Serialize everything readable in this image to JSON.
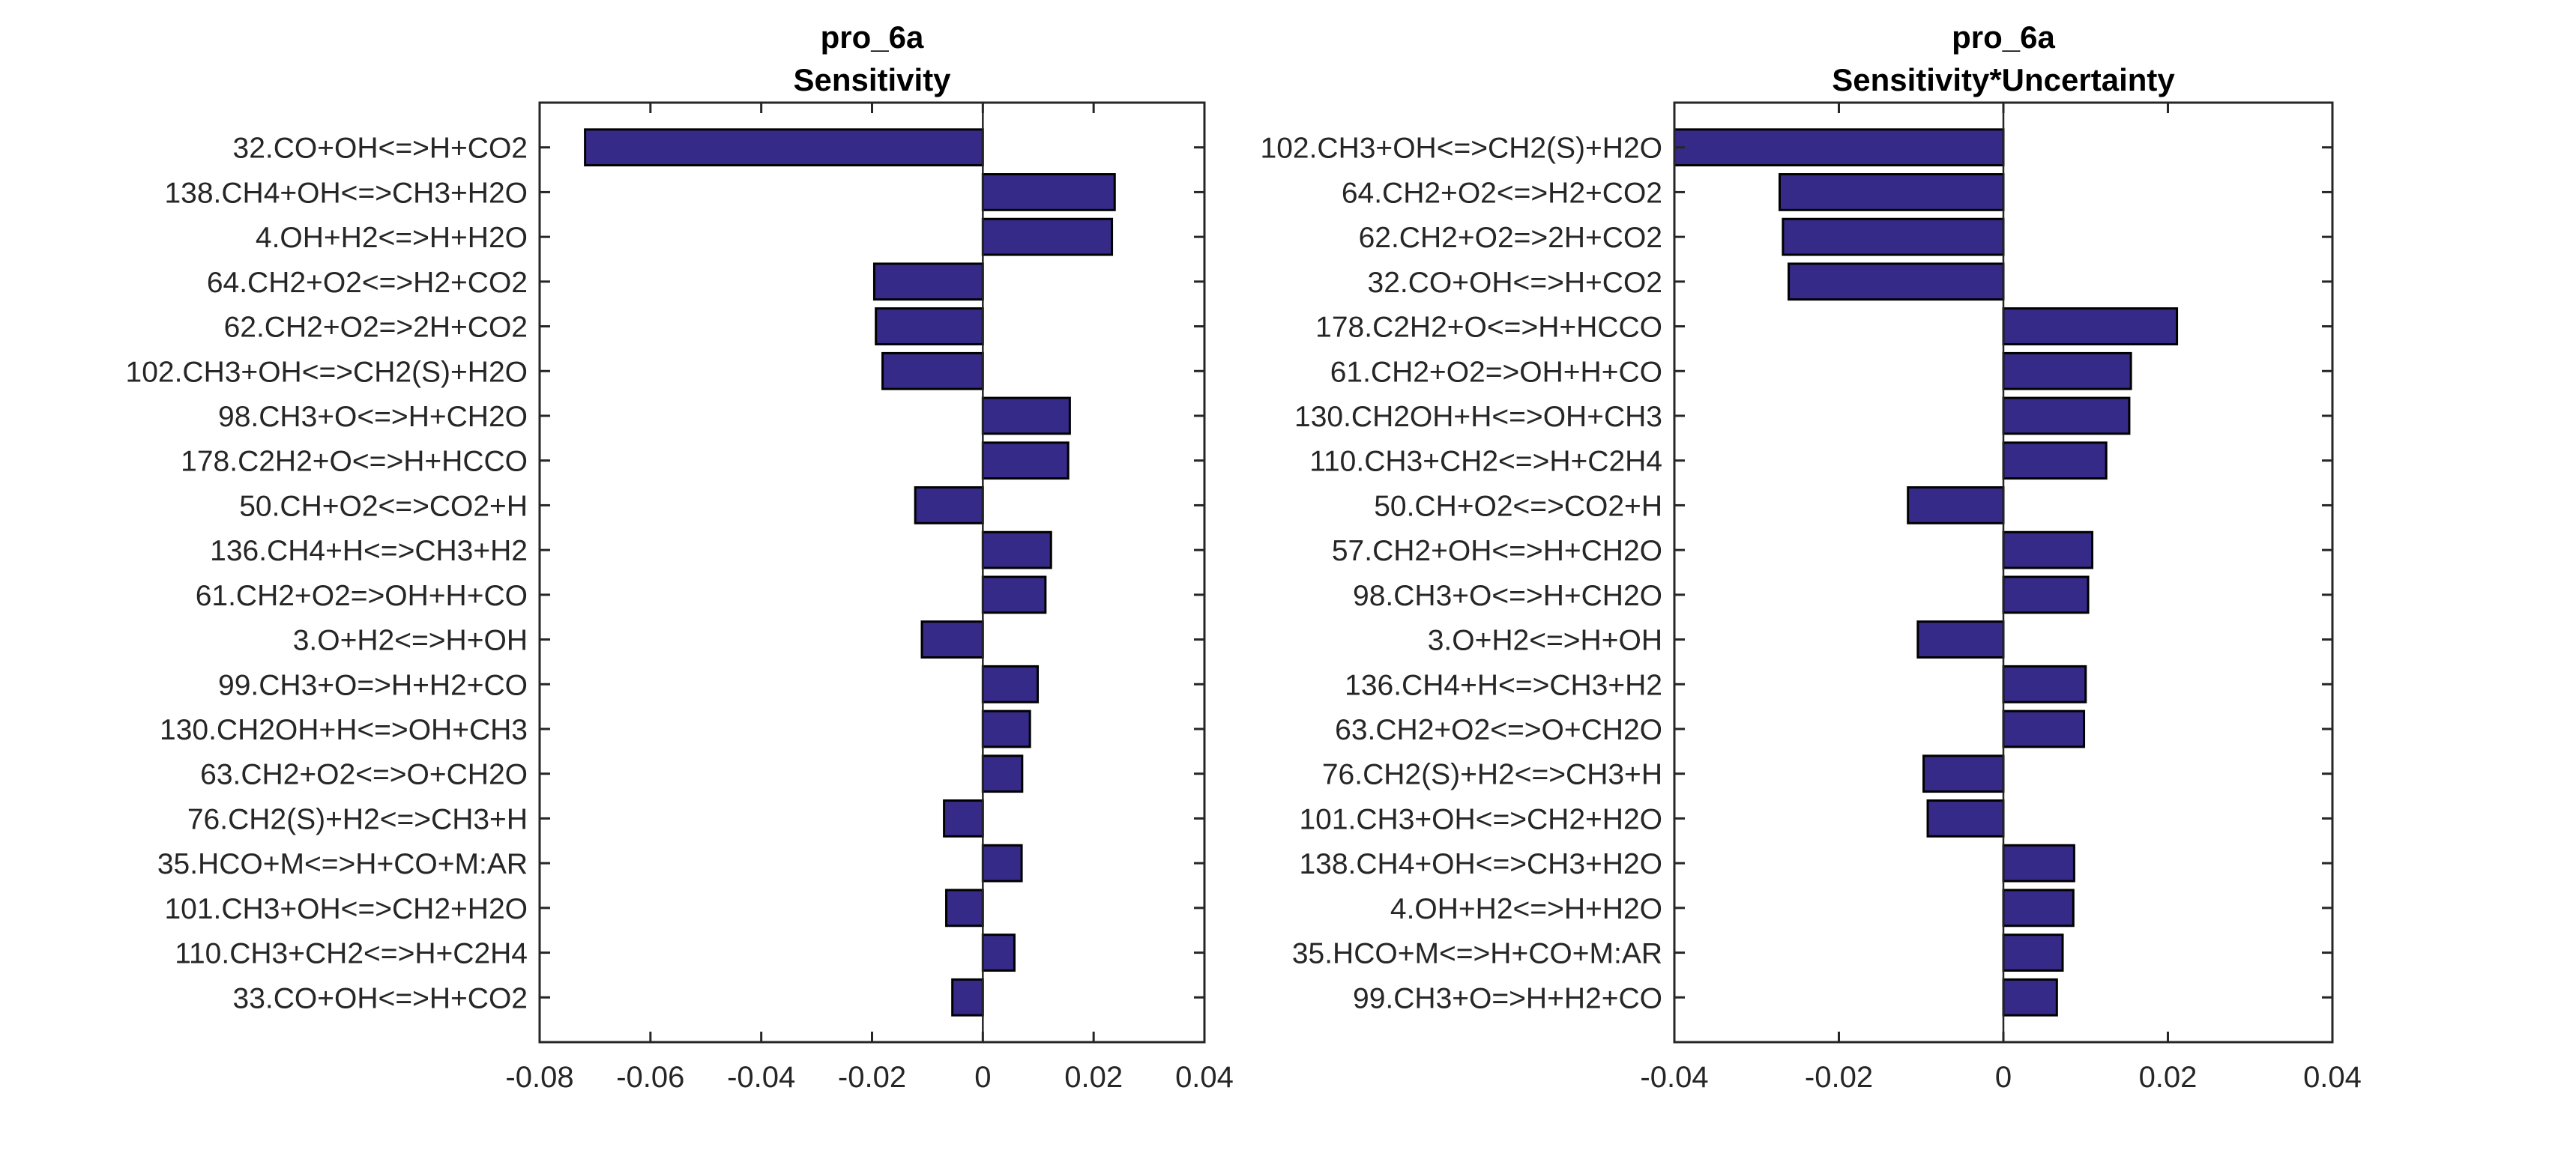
{
  "chart_data": [
    {
      "type": "bar",
      "orientation": "horizontal",
      "title": [
        "pro_6a",
        "Sensitivity"
      ],
      "xlabel": "",
      "ylabel": "",
      "xlim": [
        -0.08,
        0.04
      ],
      "xticks": [
        -0.08,
        -0.06,
        -0.04,
        -0.02,
        0,
        0.02,
        0.04
      ],
      "xtick_labels": [
        "-0.08",
        "-0.06",
        "-0.04",
        "-0.02",
        "0",
        "0.02",
        "0.04"
      ],
      "grid": false,
      "legend": "none",
      "bar_color": "#352a87",
      "edge_color": "#000000",
      "categories": [
        "32.CO+OH<=>H+CO2",
        "138.CH4+OH<=>CH3+H2O",
        "4.OH+H2<=>H+H2O",
        "64.CH2+O2<=>H2+CO2",
        "62.CH2+O2=>2H+CO2",
        "102.CH3+OH<=>CH2(S)+H2O",
        "98.CH3+O<=>H+CH2O",
        "178.C2H2+O<=>H+HCCO",
        "50.CH+O2<=>CO2+H",
        "136.CH4+H<=>CH3+H2",
        "61.CH2+O2=>OH+H+CO",
        "3.O+H2<=>H+OH",
        "99.CH3+O=>H+H2+CO",
        "130.CH2OH+H<=>OH+CH3",
        "63.CH2+O2<=>O+CH2O",
        "76.CH2(S)+H2<=>CH3+H",
        "35.HCO+M<=>H+CO+M:AR",
        "101.CH3+OH<=>CH2+H2O",
        "110.CH3+CH2<=>H+C2H4",
        "33.CO+OH<=>H+CO2"
      ],
      "values": [
        -0.0718,
        0.0238,
        0.0233,
        -0.0196,
        -0.0193,
        -0.0181,
        0.0157,
        0.0154,
        -0.0122,
        0.0123,
        0.0113,
        -0.011,
        0.0099,
        0.0085,
        0.0071,
        -0.007,
        0.007,
        -0.0066,
        0.0057,
        -0.0055
      ]
    },
    {
      "type": "bar",
      "orientation": "horizontal",
      "title": [
        "pro_6a",
        "Sensitivity*Uncertainty"
      ],
      "xlabel": "",
      "ylabel": "",
      "xlim": [
        -0.04,
        0.04
      ],
      "xticks": [
        -0.04,
        -0.02,
        0,
        0.02,
        0.04
      ],
      "xtick_labels": [
        "-0.04",
        "-0.02",
        "0",
        "0.02",
        "0.04"
      ],
      "grid": false,
      "legend": "none",
      "bar_color": "#352a87",
      "edge_color": "#000000",
      "categories": [
        "102.CH3+OH<=>CH2(S)+H2O",
        "64.CH2+O2<=>H2+CO2",
        "62.CH2+O2=>2H+CO2",
        "32.CO+OH<=>H+CO2",
        "178.C2H2+O<=>H+HCCO",
        "61.CH2+O2=>OH+H+CO",
        "130.CH2OH+H<=>OH+CH3",
        "110.CH3+CH2<=>H+C2H4",
        "50.CH+O2<=>CO2+H",
        "57.CH2+OH<=>H+CH2O",
        "98.CH3+O<=>H+CH2O",
        "3.O+H2<=>H+OH",
        "136.CH4+H<=>CH3+H2",
        "63.CH2+O2<=>O+CH2O",
        "76.CH2(S)+H2<=>CH3+H",
        "101.CH3+OH<=>CH2+H2O",
        "138.CH4+OH<=>CH3+H2O",
        "4.OH+H2<=>H+H2O",
        "35.HCO+M<=>H+CO+M:AR",
        "99.CH3+O=>H+H2+CO"
      ],
      "values": [
        -0.04,
        -0.0272,
        -0.0268,
        -0.0261,
        0.0211,
        0.0155,
        0.0153,
        0.0125,
        -0.0116,
        0.0108,
        0.0103,
        -0.0104,
        0.01,
        0.0098,
        -0.0097,
        -0.0092,
        0.0086,
        0.0085,
        0.0072,
        0.0065
      ]
    }
  ]
}
